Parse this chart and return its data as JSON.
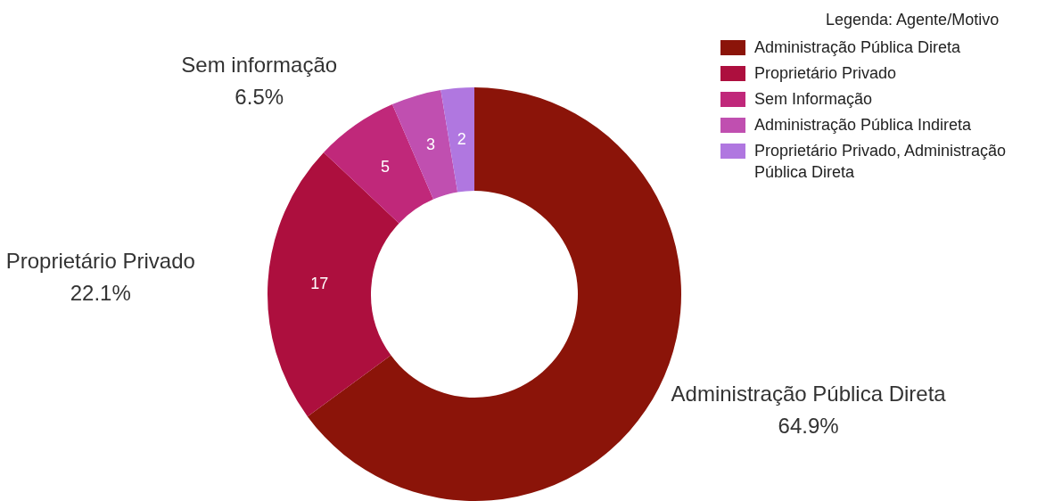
{
  "chart_data": {
    "type": "donut",
    "categories": [
      "Administração Pública Direta",
      "Proprietário Privado",
      "Sem Informação",
      "Administração Pública Indireta",
      "Proprietário Privado, Administração Pública Direta"
    ],
    "values": [
      50,
      17,
      5,
      3,
      2
    ],
    "colors": [
      "#8b1409",
      "#ad0f3e",
      "#c0287a",
      "#c04fb0",
      "#b077e0"
    ],
    "value_labels": [
      null,
      "17",
      "5",
      "3",
      "2"
    ],
    "legend": "top right",
    "legend_title": "Legenda: Agente/Motivo",
    "annotations": [
      "Administração Pública Direta\n64.9%",
      "Proprietário Privado\n22.1%",
      "Sem informação\n6.5%"
    ]
  }
}
